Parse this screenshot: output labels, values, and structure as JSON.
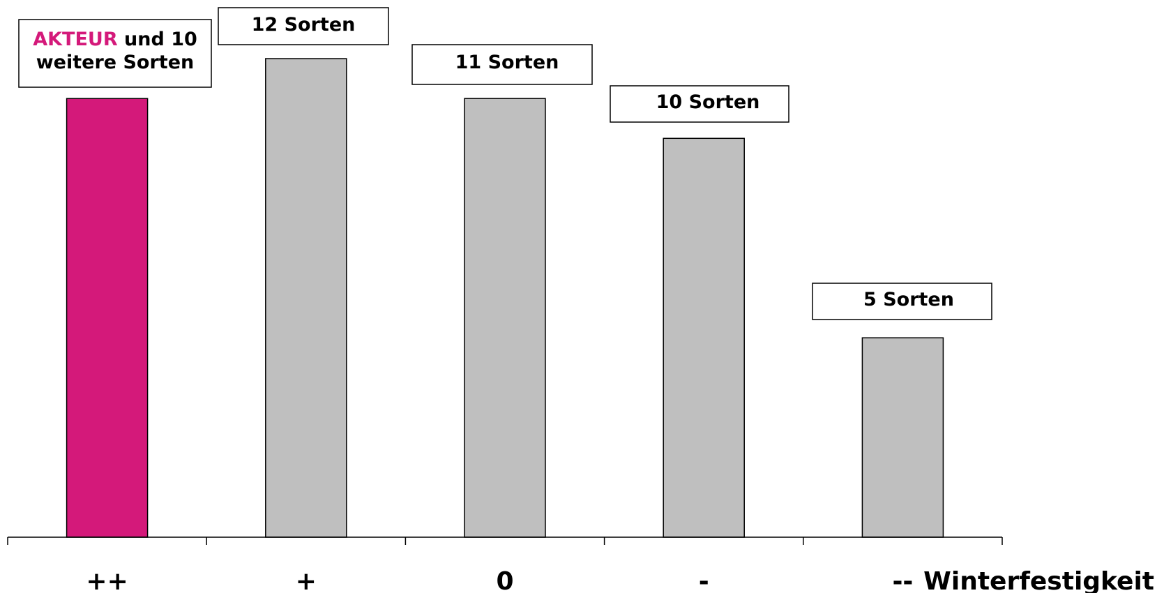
{
  "chart_data": {
    "type": "bar",
    "categories": [
      "++",
      "+",
      "0",
      "-",
      "--"
    ],
    "values": [
      11,
      12,
      11,
      10,
      5
    ],
    "ylim": [
      0,
      12
    ],
    "xlabel": "Winterfestigkeit",
    "ylabel": "",
    "grid": false,
    "bar_colors": [
      "#d4197a",
      "#bfbfbf",
      "#bfbfbf",
      "#bfbfbf",
      "#bfbfbf"
    ],
    "annotations": [
      {
        "highlight": "AKTEUR",
        "rest": " und 10",
        "line2": "weitere Sorten"
      },
      {
        "text": "12 Sorten"
      },
      {
        "text": "11 Sorten"
      },
      {
        "text": "10 Sorten"
      },
      {
        "text": "5 Sorten"
      }
    ]
  }
}
